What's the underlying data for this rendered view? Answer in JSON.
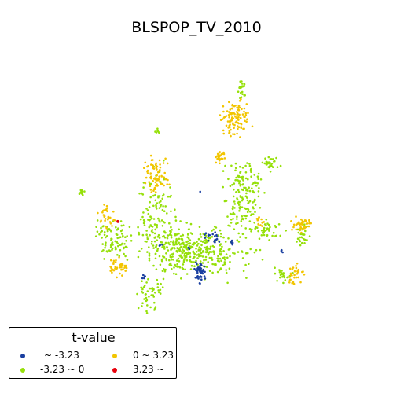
{
  "map": {
    "title": "BLSPOP_TV_2010",
    "legend": {
      "title": "t-value",
      "items": [
        {
          "label": "~ -3.23",
          "color": "#1a3fa0"
        },
        {
          "label": "-3.23 ~ 0",
          "color": "#96e00a"
        },
        {
          "label": "0 ~ 3.23",
          "color": "#f2c500"
        },
        {
          "label": "3.23 ~",
          "color": "#e8000b"
        }
      ]
    },
    "classes": {
      "low": "#1a3fa0",
      "negative": "#96e00a",
      "positive": "#f2c500",
      "high": "#e8000b"
    }
  }
}
